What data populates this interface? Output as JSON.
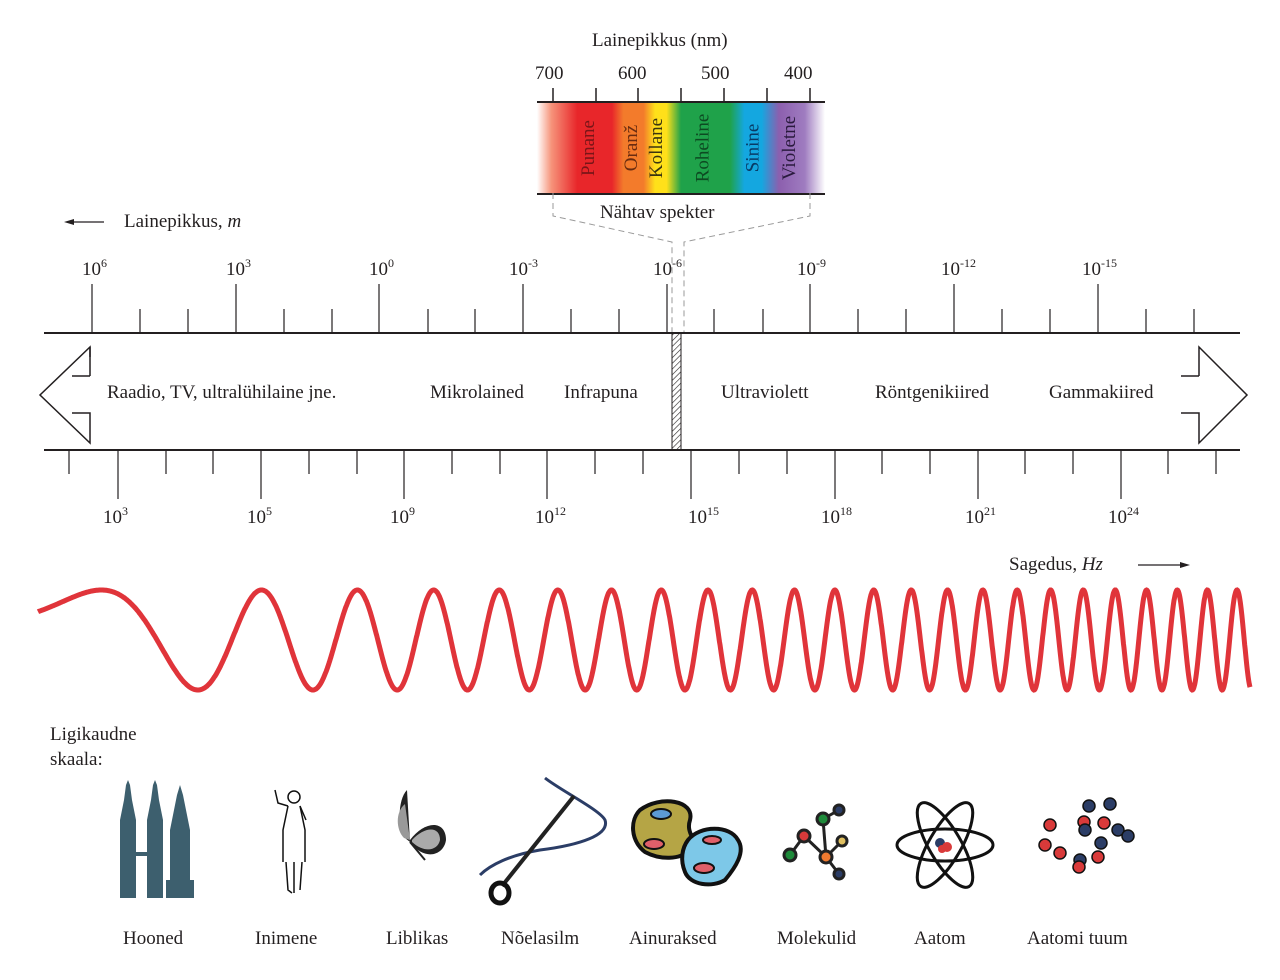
{
  "visible_spectrum": {
    "title": "Lainepikkus (nm)",
    "ticks": [
      "700",
      "600",
      "500",
      "400"
    ],
    "label": "Nähtav spekter",
    "bands": [
      {
        "name": "Punane",
        "color": "#e8262a",
        "text_color": "#7a1518"
      },
      {
        "name": "Oranž",
        "color": "#f37b2b",
        "text_color": "#6a2c10"
      },
      {
        "name": "Kollane",
        "color": "#ffe01a",
        "text_color": "#3b3410"
      },
      {
        "name": "Roheline",
        "color": "#1fa24a",
        "text_color": "#0d4a22"
      },
      {
        "name": "Sinine",
        "color": "#14a7e0",
        "text_color": "#083b66"
      },
      {
        "name": "Violetne",
        "color": "#8c5fae",
        "text_color": "#2a1a3e"
      }
    ]
  },
  "wavelength_axis": {
    "label": "Lainepikkus, ",
    "unit": "m",
    "ticks": [
      {
        "base": "10",
        "exp": "6"
      },
      {
        "base": "10",
        "exp": "3"
      },
      {
        "base": "10",
        "exp": "0"
      },
      {
        "base": "10",
        "exp": "-3"
      },
      {
        "base": "10",
        "exp": "-6"
      },
      {
        "base": "10",
        "exp": "-9"
      },
      {
        "base": "10",
        "exp": "-12"
      },
      {
        "base": "10",
        "exp": "-15"
      }
    ]
  },
  "bands": {
    "radio": "Raadio, TV, ultralühilaine jne.",
    "microwave": "Mikrolained",
    "infrared": "Infrapuna",
    "ultraviolet": "Ultraviolett",
    "xray": "Röntgenikiired",
    "gamma": "Gammakiired"
  },
  "frequency_axis": {
    "label": "Sagedus, ",
    "unit": "Hz",
    "ticks": [
      {
        "base": "10",
        "exp": "3"
      },
      {
        "base": "10",
        "exp": "5"
      },
      {
        "base": "10",
        "exp": "9"
      },
      {
        "base": "10",
        "exp": "12"
      },
      {
        "base": "10",
        "exp": "15"
      },
      {
        "base": "10",
        "exp": "18"
      },
      {
        "base": "10",
        "exp": "21"
      },
      {
        "base": "10",
        "exp": "24"
      }
    ]
  },
  "wave_color": "#e0343a",
  "scale": {
    "title_line1": "Ligikaudne",
    "title_line2": "skaala:",
    "items": [
      {
        "label": "Hooned",
        "icon": "buildings-icon"
      },
      {
        "label": "Inimene",
        "icon": "human-icon"
      },
      {
        "label": "Liblikas",
        "icon": "butterfly-icon"
      },
      {
        "label": "Nõelasilm",
        "icon": "needle-eye-icon"
      },
      {
        "label": "Ainuraksed",
        "icon": "single-cell-icon"
      },
      {
        "label": "Molekulid",
        "icon": "molecule-icon"
      },
      {
        "label": "Aatom",
        "icon": "atom-icon"
      },
      {
        "label": "Aatomi tuum",
        "icon": "nucleus-icon"
      }
    ]
  }
}
